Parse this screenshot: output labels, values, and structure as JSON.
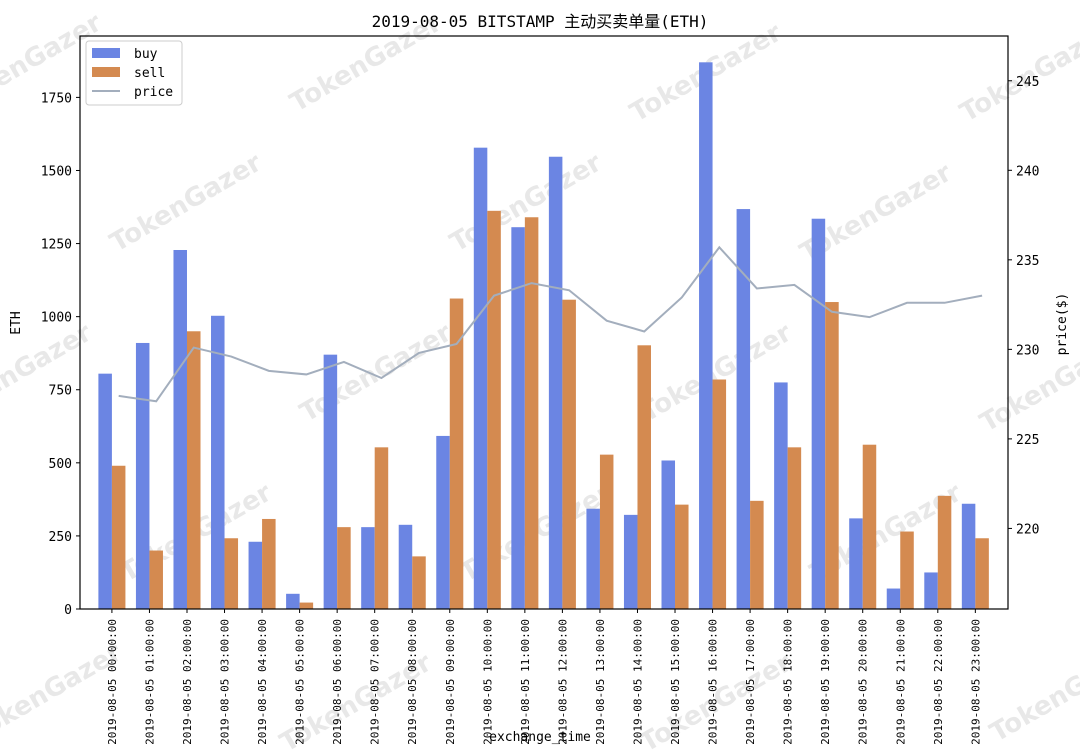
{
  "chart_data": {
    "type": "bar",
    "title": "2019-08-05 BITSTAMP 主动买卖单量(ETH)",
    "xlabel": "exchange_time",
    "ylabel": "ETH",
    "y2label": "price($)",
    "ylim": [
      0,
      1960
    ],
    "y2lim": [
      215.5,
      247.5
    ],
    "yticks": [
      "0",
      "250",
      "500",
      "750",
      "1000",
      "1250",
      "1500",
      "1750"
    ],
    "y2ticks": [
      "220",
      "225",
      "230",
      "235",
      "240",
      "245"
    ],
    "legend_position": "top-left",
    "categories": [
      "2019-08-05 00:00:00",
      "2019-08-05 01:00:00",
      "2019-08-05 02:00:00",
      "2019-08-05 03:00:00",
      "2019-08-05 04:00:00",
      "2019-08-05 05:00:00",
      "2019-08-05 06:00:00",
      "2019-08-05 07:00:00",
      "2019-08-05 08:00:00",
      "2019-08-05 09:00:00",
      "2019-08-05 10:00:00",
      "2019-08-05 11:00:00",
      "2019-08-05 12:00:00",
      "2019-08-05 13:00:00",
      "2019-08-05 14:00:00",
      "2019-08-05 15:00:00",
      "2019-08-05 16:00:00",
      "2019-08-05 17:00:00",
      "2019-08-05 18:00:00",
      "2019-08-05 19:00:00",
      "2019-08-05 20:00:00",
      "2019-08-05 21:00:00",
      "2019-08-05 22:00:00",
      "2019-08-05 23:00:00"
    ],
    "series": [
      {
        "name": "buy",
        "color": "#6b85e3",
        "axis": "left",
        "values": [
          805,
          910,
          1228,
          1003,
          230,
          52,
          870,
          280,
          288,
          592,
          1578,
          1306,
          1547,
          343,
          322,
          508,
          1870,
          1368,
          775,
          1335,
          310,
          70,
          125,
          360
        ]
      },
      {
        "name": "sell",
        "color": "#d48a50",
        "axis": "left",
        "values": [
          490,
          200,
          950,
          242,
          308,
          22,
          280,
          553,
          180,
          1062,
          1362,
          1340,
          1058,
          528,
          902,
          357,
          785,
          370,
          553,
          1050,
          562,
          265,
          387,
          242
        ]
      },
      {
        "name": "price",
        "color": "#a3aebd",
        "axis": "right",
        "type": "line",
        "values": [
          227.4,
          227.1,
          230.1,
          229.6,
          228.8,
          228.6,
          229.3,
          228.4,
          229.8,
          230.3,
          233.0,
          233.7,
          233.3,
          231.6,
          231.0,
          232.9,
          235.7,
          233.4,
          233.6,
          232.1,
          231.8,
          232.6,
          232.6,
          233.0
        ]
      }
    ]
  },
  "watermark_text": "TokenGazer"
}
